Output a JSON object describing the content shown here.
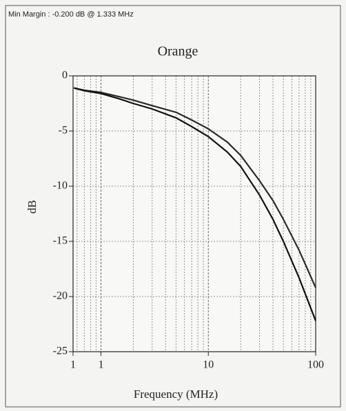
{
  "chart_data": {
    "type": "line",
    "header": "Min Margin : -0.200 dB @ 1.333 MHz",
    "title": "Orange",
    "x_label": "Frequency (MHz)",
    "y_label": "dB",
    "x_log": true,
    "xlim": [
      0.55,
      100
    ],
    "xticks": [
      {
        "value": 0.55,
        "label": "1"
      },
      1,
      10,
      100
    ],
    "x_minor_grid": [
      0.6,
      0.7,
      0.8,
      0.9,
      2,
      3,
      4,
      5,
      6,
      7,
      8,
      9,
      20,
      30,
      40,
      50,
      60,
      70,
      80,
      90
    ],
    "ylim": [
      -25,
      0
    ],
    "yticks": [
      0,
      -5,
      -10,
      -15,
      -20,
      -25
    ],
    "grid": true,
    "x": [
      0.56,
      0.7,
      1,
      1.5,
      2,
      3,
      5,
      7,
      10,
      15,
      20,
      30,
      40,
      50,
      70,
      100
    ],
    "series": [
      {
        "color": "#2a2a2a",
        "values": [
          -1.1,
          -1.3,
          -1.5,
          -1.9,
          -2.2,
          -2.7,
          -3.3,
          -4.0,
          -4.8,
          -6.0,
          -7.2,
          -9.5,
          -11.3,
          -13.0,
          -15.8,
          -19.2
        ]
      },
      {
        "color": "#111111",
        "values": [
          -1.1,
          -1.35,
          -1.6,
          -2.1,
          -2.5,
          -3.0,
          -3.8,
          -4.6,
          -5.5,
          -6.9,
          -8.2,
          -10.8,
          -13.0,
          -15.0,
          -18.3,
          -22.2
        ]
      }
    ]
  }
}
